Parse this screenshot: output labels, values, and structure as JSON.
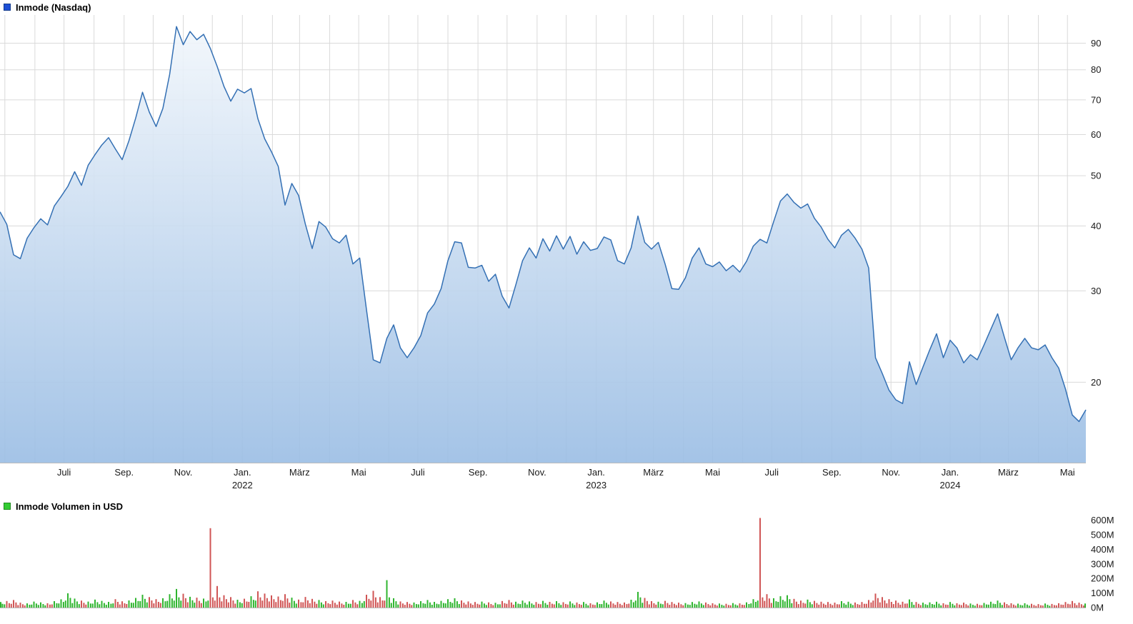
{
  "chart_data": [
    {
      "type": "area",
      "title": "Inmode (Nasdaq)",
      "exchange": "Nasdaq",
      "legend_color": "#1d4fd6",
      "legend_border_color": "#123a8c",
      "line_color": "#3470b4",
      "area_top_color": "#f4f8fc",
      "area_bottom_color": "#9abde4",
      "y_axis": {
        "scale": "log",
        "min": 14,
        "max": 102,
        "ticks": [
          90,
          80,
          70,
          60,
          50,
          40,
          30,
          20
        ]
      },
      "x_axis": {
        "labels": [
          {
            "date": "2021-07-01",
            "text": "Juli"
          },
          {
            "date": "2021-09-01",
            "text": "Sep."
          },
          {
            "date": "2021-11-01",
            "text": "Nov."
          },
          {
            "date": "2022-01-01",
            "text": "Jan.",
            "year": "2022"
          },
          {
            "date": "2022-03-01",
            "text": "März"
          },
          {
            "date": "2022-05-01",
            "text": "Mai"
          },
          {
            "date": "2022-07-01",
            "text": "Juli"
          },
          {
            "date": "2022-09-01",
            "text": "Sep."
          },
          {
            "date": "2022-11-01",
            "text": "Nov."
          },
          {
            "date": "2023-01-01",
            "text": "Jan.",
            "year": "2023"
          },
          {
            "date": "2023-03-01",
            "text": "März"
          },
          {
            "date": "2023-05-01",
            "text": "Mai"
          },
          {
            "date": "2023-07-01",
            "text": "Juli"
          },
          {
            "date": "2023-09-01",
            "text": "Sep."
          },
          {
            "date": "2023-11-01",
            "text": "Nov."
          },
          {
            "date": "2024-01-01",
            "text": "Jan.",
            "year": "2024"
          },
          {
            "date": "2024-03-01",
            "text": "März"
          },
          {
            "date": "2024-05-01",
            "text": "Mai"
          }
        ]
      },
      "series": {
        "name": "Inmode",
        "unit": "USD",
        "start_date": "2021-04-26",
        "interval_days": 7,
        "values": [
          42.6,
          40.3,
          35.2,
          34.6,
          37.9,
          39.7,
          41.3,
          40.2,
          43.7,
          45.6,
          47.7,
          50.9,
          47.9,
          52.4,
          54.9,
          57.3,
          59.2,
          56.3,
          53.7,
          58.4,
          64.6,
          72.4,
          66.3,
          62.2,
          67.4,
          78.4,
          96.9,
          89.4,
          94.8,
          91.4,
          93.6,
          87.9,
          81.2,
          74.3,
          69.6,
          73.4,
          72.2,
          73.6,
          64.4,
          58.9,
          55.6,
          52.1,
          43.9,
          48.3,
          45.8,
          40.3,
          36.2,
          40.8,
          39.8,
          37.8,
          37.1,
          38.4,
          33.8,
          34.7,
          27.6,
          22.1,
          21.8,
          24.3,
          25.8,
          23.3,
          22.3,
          23.3,
          24.6,
          27.2,
          28.3,
          30.3,
          34.3,
          37.3,
          37.1,
          33.3,
          33.2,
          33.6,
          31.3,
          32.3,
          29.3,
          27.8,
          30.8,
          34.3,
          36.3,
          34.7,
          37.8,
          35.8,
          38.3,
          36.1,
          38.2,
          35.3,
          37.3,
          35.9,
          36.2,
          38.1,
          37.6,
          34.3,
          33.8,
          36.3,
          41.8,
          37.2,
          36.1,
          37.2,
          33.8,
          30.3,
          30.2,
          31.8,
          34.7,
          36.3,
          33.8,
          33.4,
          34.1,
          32.8,
          33.6,
          32.6,
          34.2,
          36.6,
          37.7,
          37.1,
          40.8,
          44.7,
          46.1,
          44.4,
          43.3,
          44.1,
          41.4,
          39.8,
          37.7,
          36.3,
          38.4,
          39.4,
          37.9,
          36.1,
          33.2,
          22.3,
          20.8,
          19.3,
          18.5,
          18.2,
          21.9,
          19.8,
          21.4,
          23.1,
          24.8,
          22.3,
          24.1,
          23.3,
          21.8,
          22.6,
          22.1,
          23.6,
          25.3,
          27.1,
          24.4,
          22.1,
          23.3,
          24.3,
          23.3,
          23.1,
          23.6,
          22.3,
          21.3,
          19.4,
          17.3,
          16.8,
          17.7
        ]
      }
    },
    {
      "type": "bar",
      "title": "Inmode Volumen in USD",
      "legend_color": "#33cc33",
      "legend_border_color": "#1f8c1f",
      "up_color": "#2fb52f",
      "down_color": "#d05555",
      "y_axis": {
        "unit": "M",
        "labels": [
          "600M",
          "500M",
          "400M",
          "300M",
          "200M",
          "100M",
          "0M"
        ]
      },
      "series": {
        "name": "Inmode Volumen",
        "unit": "Millionen USD",
        "start_date": "2021-04-26",
        "interval_days": 7,
        "values_musd": [
          38,
          45,
          52,
          34,
          29,
          41,
          36,
          30,
          44,
          57,
          98,
          62,
          48,
          41,
          55,
          46,
          39,
          58,
          43,
          49,
          66,
          88,
          72,
          58,
          64,
          92,
          128,
          95,
          74,
          68,
          62,
          545,
          148,
          85,
          72,
          54,
          61,
          78,
          112,
          96,
          84,
          76,
          92,
          68,
          55,
          73,
          60,
          52,
          44,
          48,
          41,
          39,
          52,
          46,
          88,
          115,
          72,
          188,
          64,
          42,
          38,
          35,
          44,
          52,
          39,
          46,
          58,
          64,
          49,
          42,
          38,
          41,
          36,
          33,
          45,
          52,
          40,
          48,
          42,
          38,
          46,
          39,
          44,
          37,
          42,
          35,
          38,
          30,
          36,
          48,
          42,
          38,
          35,
          54,
          108,
          66,
          44,
          40,
          46,
          38,
          34,
          31,
          38,
          42,
          35,
          30,
          28,
          26,
          31,
          29,
          36,
          58,
          615,
          92,
          64,
          78,
          85,
          60,
          48,
          55,
          46,
          40,
          38,
          34,
          44,
          40,
          35,
          38,
          52,
          96,
          72,
          58,
          48,
          40,
          56,
          38,
          34,
          36,
          40,
          30,
          38,
          30,
          34,
          28,
          26,
          32,
          40,
          48,
          36,
          30,
          27,
          30,
          26,
          24,
          28,
          25,
          30,
          38,
          45,
          34,
          28
        ],
        "direction": "grrrgggrggggrggggrrgggrrgggrgrgrrrrgrgrrrrrgrrrgrrrgrgrrrggrrgggggggrrrgrgrrgggrgrgrgrgrggrrrggrrgrrrgggrrgrgrggrrgggrrgrrrrggrrrrrrrrgrgggrgrrgrgggrrggrrgrrrrrg"
      }
    }
  ]
}
